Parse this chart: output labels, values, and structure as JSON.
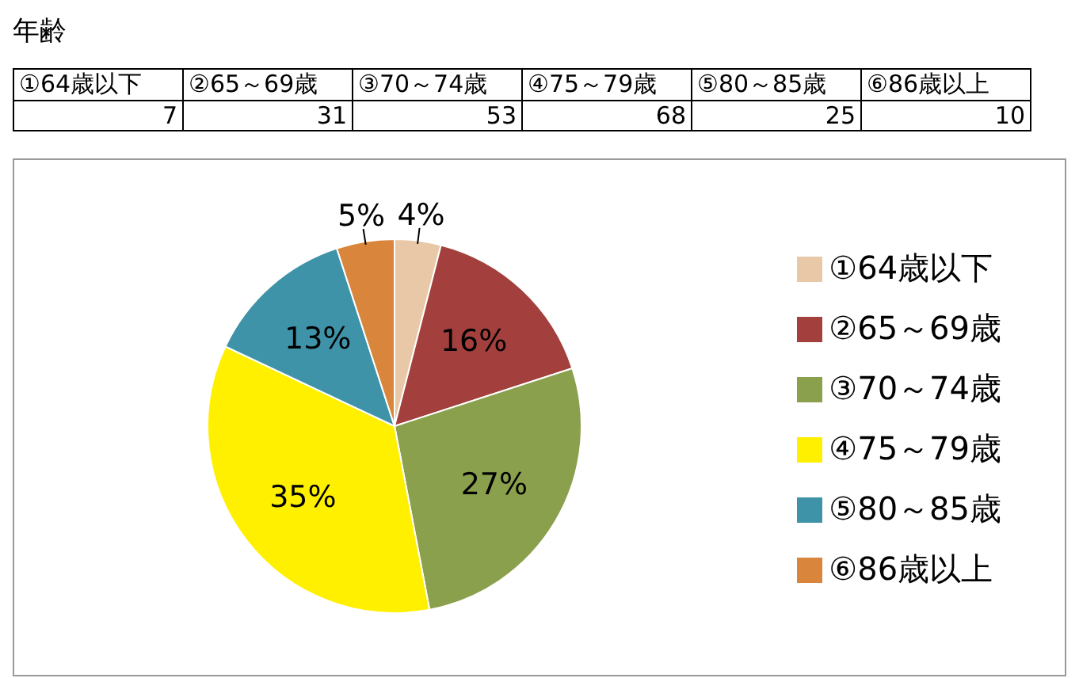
{
  "chart_data": [
    {
      "type": "other",
      "title": "年齢",
      "categories": [
        "①64歳以下",
        "②65～69歳",
        "③70～74歳",
        "④75～79歳",
        "⑤80～85歳",
        "⑥86歳以上"
      ],
      "values": [
        7,
        31,
        53,
        68,
        25,
        10
      ],
      "data_labels": true
    },
    {
      "type": "pie",
      "categories": [
        "①64歳以下",
        "②65～69歳",
        "③70～74歳",
        "④75～79歳",
        "⑤80～85歳",
        "⑥86歳以上"
      ],
      "values": [
        4,
        16,
        27,
        35,
        13,
        5
      ],
      "colors": [
        "#e8c8a6",
        "#a3403d",
        "#8aa04c",
        "#fff000",
        "#3f93a8",
        "#d9853b"
      ],
      "value_labels": [
        "4%",
        "16%",
        "27%",
        "35%",
        "13%",
        "5%"
      ],
      "legend": "right"
    }
  ]
}
